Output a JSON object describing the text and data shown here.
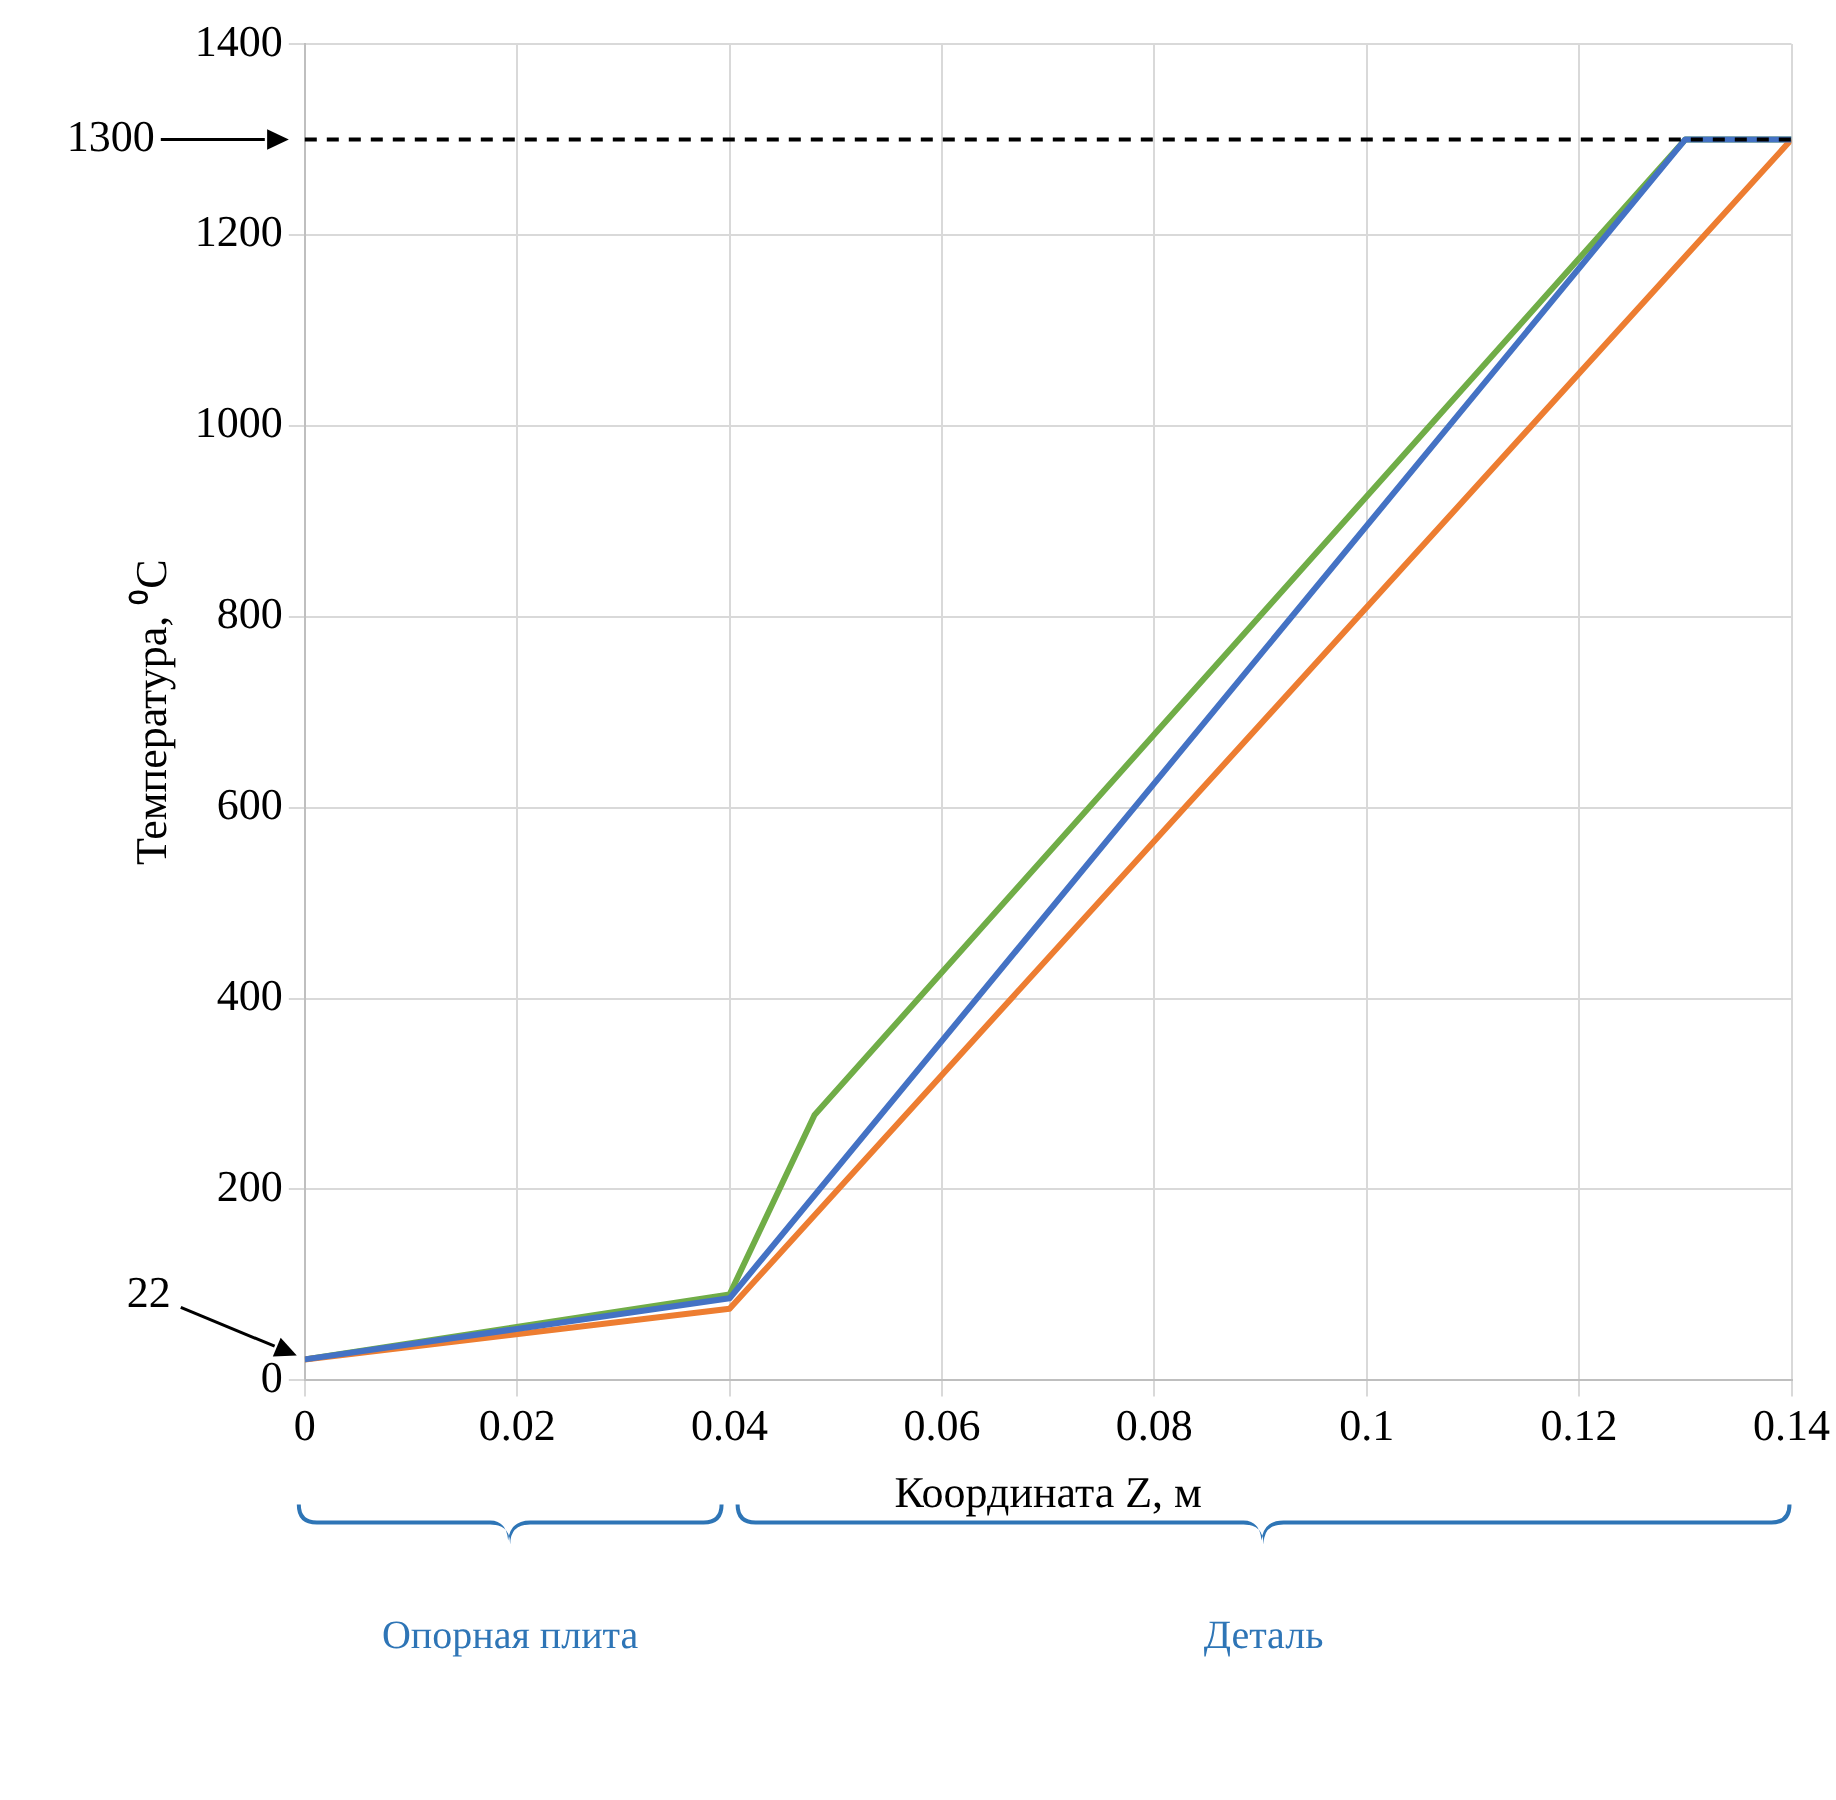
{
  "chart_data": {
    "type": "line",
    "xlabel": "Координата Z, м",
    "ylabel": "Температура, ⁰C",
    "xlim": [
      0,
      0.14
    ],
    "xticks": [
      0,
      0.02,
      0.04,
      0.06,
      0.08,
      0.1,
      0.12,
      0.14
    ],
    "ylim": [
      0,
      1400
    ],
    "yticks": [
      0,
      200,
      400,
      600,
      800,
      1000,
      1200,
      1400
    ],
    "grid": true,
    "legend": false,
    "marker": "none",
    "line_style": "solid",
    "series": [
      {
        "color": "#4472c4",
        "x": [
          0,
          0.04,
          0.13,
          0.14
        ],
        "values": [
          22,
          86,
          1300,
          1300
        ]
      },
      {
        "color": "#ed7d31",
        "x": [
          0,
          0.04,
          0.14
        ],
        "values": [
          22,
          75,
          1300
        ]
      },
      {
        "color": "#70ad47",
        "x": [
          0,
          0.04,
          0.048,
          0.13,
          0.14
        ],
        "values": [
          22,
          90,
          278,
          1300,
          1300
        ]
      }
    ],
    "ref_lines": [
      {
        "axis": "y",
        "value": 1300,
        "label": "1300",
        "color": "#000000",
        "line_style": "dashed"
      }
    ],
    "annotations": [
      "22",
      "Опорная плита",
      "Деталь"
    ]
  }
}
